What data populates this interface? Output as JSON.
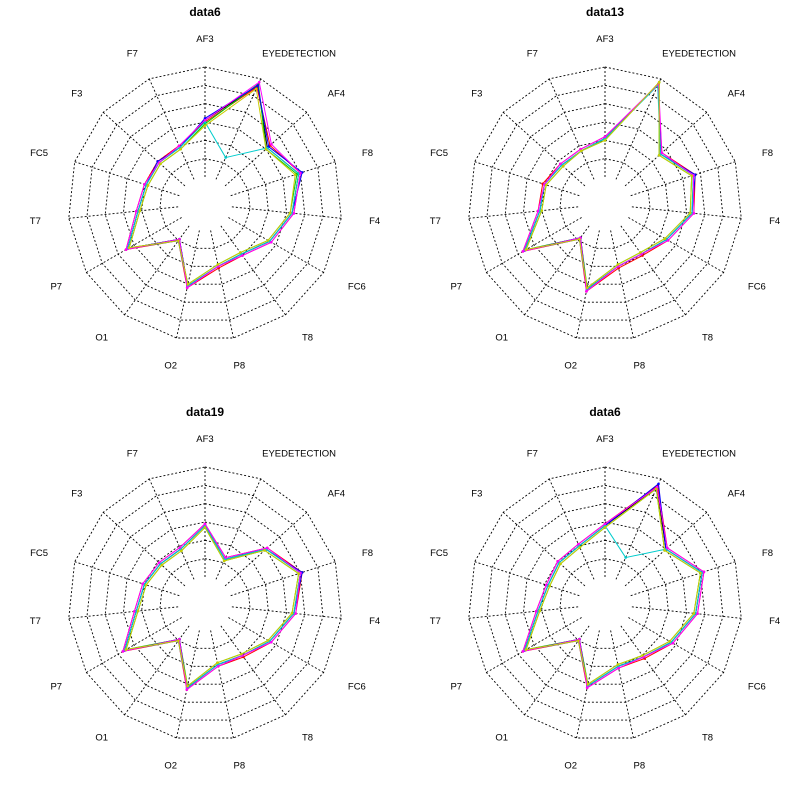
{
  "chart_data": [
    {
      "type": "radar",
      "title": "data6",
      "axes": [
        "AF3",
        "EYEDETECTION",
        "AF4",
        "F8",
        "F4",
        "FC6",
        "T8",
        "P8",
        "O2",
        "O1",
        "P7",
        "T7",
        "FC5",
        "F3",
        "F7"
      ],
      "rmax": 6,
      "rings": 6,
      "series": [
        {
          "color": "#000000",
          "values": [
            3.1,
            5.6,
            3.1,
            3.9,
            3.3,
            2.6,
            1.9,
            2.0,
            3.1,
            0.9,
            3.4,
            2.2,
            1.9,
            1.9,
            1.9
          ]
        },
        {
          "color": "#ff0000",
          "values": [
            3.0,
            5.5,
            3.3,
            4.0,
            3.4,
            2.7,
            2.0,
            2.1,
            3.2,
            1.0,
            3.5,
            2.3,
            2.0,
            2.0,
            2.0
          ]
        },
        {
          "color": "#00cc00",
          "values": [
            2.9,
            5.7,
            3.0,
            3.8,
            3.2,
            2.5,
            1.8,
            1.9,
            3.0,
            1.0,
            3.3,
            2.1,
            1.8,
            1.8,
            1.8
          ]
        },
        {
          "color": "#0000ff",
          "values": [
            3.2,
            5.6,
            3.2,
            4.1,
            3.3,
            2.6,
            1.9,
            2.0,
            3.1,
            0.9,
            3.4,
            2.2,
            1.9,
            2.0,
            1.9
          ]
        },
        {
          "color": "#00cccc",
          "values": [
            3.0,
            1.3,
            3.1,
            3.9,
            3.3,
            2.6,
            1.9,
            2.0,
            3.1,
            1.0,
            3.4,
            2.2,
            1.9,
            1.9,
            1.9
          ]
        },
        {
          "color": "#ff00ff",
          "values": [
            3.1,
            5.8,
            3.4,
            4.0,
            3.4,
            2.7,
            2.0,
            2.0,
            3.2,
            0.9,
            3.5,
            2.3,
            2.0,
            1.9,
            2.0
          ]
        },
        {
          "color": "#cccc00",
          "values": [
            2.8,
            5.4,
            3.0,
            3.7,
            3.2,
            2.5,
            1.8,
            1.9,
            3.0,
            1.0,
            3.3,
            2.1,
            1.8,
            1.8,
            1.8
          ]
        }
      ]
    },
    {
      "type": "radar",
      "title": "data13",
      "axes": [
        "AF3",
        "EYEDETECTION",
        "AF4",
        "F8",
        "F4",
        "FC6",
        "T8",
        "P8",
        "O2",
        "O1",
        "P7",
        "T7",
        "FC5",
        "F3",
        "F7"
      ],
      "rmax": 6,
      "rings": 6,
      "series": [
        {
          "color": "#000000",
          "values": [
            2.1,
            5.7,
            2.6,
            3.6,
            3.3,
            2.4,
            1.9,
            2.0,
            3.3,
            0.8,
            3.6,
            2.1,
            2.0,
            1.7,
            1.7
          ]
        },
        {
          "color": "#ff0000",
          "values": [
            2.2,
            5.6,
            2.7,
            3.7,
            3.4,
            2.5,
            2.0,
            2.1,
            3.4,
            0.9,
            3.7,
            2.2,
            2.1,
            1.8,
            1.8
          ]
        },
        {
          "color": "#00cc00",
          "values": [
            2.0,
            5.8,
            2.5,
            3.5,
            3.2,
            2.3,
            1.8,
            1.9,
            3.2,
            0.8,
            3.5,
            2.0,
            1.9,
            1.6,
            1.7
          ]
        },
        {
          "color": "#0000ff",
          "values": [
            2.1,
            5.7,
            2.6,
            3.7,
            3.3,
            2.4,
            1.9,
            2.0,
            3.3,
            0.8,
            3.6,
            2.1,
            2.0,
            1.7,
            1.7
          ]
        },
        {
          "color": "#00cccc",
          "values": [
            2.1,
            5.6,
            2.6,
            3.6,
            3.3,
            2.4,
            1.9,
            2.0,
            3.3,
            0.9,
            3.6,
            2.1,
            2.0,
            1.7,
            1.7
          ]
        },
        {
          "color": "#ff00ff",
          "values": [
            2.2,
            5.7,
            2.7,
            3.6,
            3.4,
            2.5,
            1.9,
            2.0,
            3.4,
            0.8,
            3.7,
            2.2,
            2.0,
            1.8,
            1.8
          ]
        },
        {
          "color": "#cccc00",
          "values": [
            2.0,
            5.8,
            2.5,
            3.5,
            3.2,
            2.3,
            1.8,
            1.9,
            3.2,
            0.9,
            3.5,
            2.0,
            1.9,
            1.6,
            1.7
          ]
        }
      ]
    },
    {
      "type": "radar",
      "title": "data19",
      "axes": [
        "AF3",
        "EYEDETECTION",
        "AF4",
        "F8",
        "F4",
        "FC6",
        "T8",
        "P8",
        "O2",
        "O1",
        "P7",
        "T7",
        "FC5",
        "F3",
        "F7"
      ],
      "rmax": 6,
      "rings": 6,
      "series": [
        {
          "color": "#000000",
          "values": [
            2.8,
            1.2,
            3.0,
            4.0,
            3.4,
            2.6,
            2.0,
            1.9,
            3.2,
            0.9,
            3.6,
            2.3,
            2.0,
            1.8,
            1.8
          ]
        },
        {
          "color": "#ff0000",
          "values": [
            2.9,
            1.3,
            3.1,
            4.1,
            3.5,
            2.7,
            2.1,
            2.0,
            3.3,
            1.0,
            3.7,
            2.4,
            2.1,
            1.9,
            1.9
          ]
        },
        {
          "color": "#00cc00",
          "values": [
            2.7,
            1.1,
            2.9,
            3.9,
            3.3,
            2.5,
            1.9,
            1.8,
            3.1,
            0.9,
            3.5,
            2.2,
            1.9,
            1.7,
            1.7
          ]
        },
        {
          "color": "#0000ff",
          "values": [
            2.8,
            1.2,
            3.0,
            4.1,
            3.4,
            2.6,
            2.0,
            1.9,
            3.2,
            0.9,
            3.6,
            2.3,
            2.0,
            1.8,
            1.8
          ]
        },
        {
          "color": "#00cccc",
          "values": [
            2.8,
            1.2,
            3.0,
            4.0,
            3.4,
            2.6,
            2.0,
            1.9,
            3.2,
            1.0,
            3.6,
            2.3,
            2.0,
            1.8,
            1.8
          ]
        },
        {
          "color": "#ff00ff",
          "values": [
            2.9,
            1.3,
            3.1,
            4.0,
            3.5,
            2.7,
            2.0,
            2.0,
            3.3,
            0.9,
            3.7,
            2.4,
            2.1,
            1.9,
            1.9
          ]
        },
        {
          "color": "#cccc00",
          "values": [
            2.7,
            1.1,
            2.9,
            3.9,
            3.3,
            2.5,
            1.9,
            1.8,
            3.1,
            1.0,
            3.5,
            2.2,
            1.9,
            1.7,
            1.7
          ]
        }
      ]
    },
    {
      "type": "radar",
      "title": "data6",
      "axes": [
        "AF3",
        "EYEDETECTION",
        "AF4",
        "F8",
        "F4",
        "FC6",
        "T8",
        "P8",
        "O2",
        "O1",
        "P7",
        "T7",
        "FC5",
        "F3",
        "F7"
      ],
      "rmax": 6,
      "rings": 6,
      "series": [
        {
          "color": "#000000",
          "values": [
            2.8,
            5.5,
            3.0,
            4.1,
            3.5,
            2.7,
            2.1,
            2.0,
            3.1,
            0.9,
            3.6,
            2.2,
            1.8,
            1.9,
            2.0
          ]
        },
        {
          "color": "#ff0000",
          "values": [
            2.9,
            5.6,
            3.1,
            4.2,
            3.6,
            2.8,
            2.2,
            2.1,
            3.2,
            1.0,
            3.7,
            2.3,
            1.9,
            2.0,
            2.1
          ]
        },
        {
          "color": "#00cc00",
          "values": [
            2.7,
            5.4,
            2.9,
            4.0,
            3.4,
            2.6,
            2.0,
            1.9,
            3.0,
            0.9,
            3.5,
            2.1,
            1.7,
            1.8,
            1.9
          ]
        },
        {
          "color": "#0000ff",
          "values": [
            2.8,
            5.7,
            3.0,
            4.1,
            3.5,
            2.7,
            2.1,
            2.0,
            3.1,
            0.9,
            3.6,
            2.2,
            1.8,
            1.9,
            2.0
          ]
        },
        {
          "color": "#00cccc",
          "values": [
            2.8,
            1.3,
            3.0,
            4.1,
            3.5,
            2.7,
            2.1,
            2.0,
            3.1,
            1.0,
            3.6,
            2.2,
            1.8,
            1.9,
            2.0
          ]
        },
        {
          "color": "#ff00ff",
          "values": [
            2.9,
            5.5,
            3.1,
            4.2,
            3.6,
            2.8,
            2.1,
            2.1,
            3.2,
            0.9,
            3.7,
            2.3,
            1.9,
            2.0,
            2.1
          ]
        },
        {
          "color": "#cccc00",
          "values": [
            2.7,
            5.4,
            2.9,
            4.0,
            3.4,
            2.6,
            2.0,
            1.9,
            3.0,
            1.0,
            3.5,
            2.1,
            1.7,
            1.8,
            1.9
          ]
        }
      ]
    }
  ]
}
